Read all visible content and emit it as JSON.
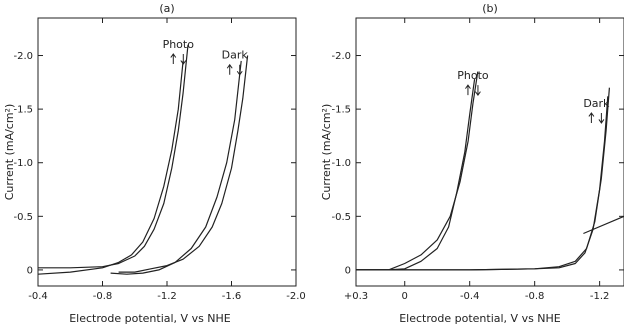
{
  "chart_data": [
    {
      "type": "line",
      "panel_label": "(a)",
      "xlabel": "Electrode potential, V vs NHE",
      "ylabel": "Current (mA/cm²)",
      "x_ticks": [
        "-0.4",
        "-0.8",
        "-1.2",
        "-1.6",
        "-2.0"
      ],
      "x_tick_values": [
        -0.4,
        -0.8,
        -1.2,
        -1.6,
        -2.0
      ],
      "y_ticks": [
        "0",
        "-0.5",
        "-1.0",
        "-1.5",
        "-2.0"
      ],
      "y_tick_values": [
        0,
        -0.5,
        -1.0,
        -1.5,
        -2.0
      ],
      "xlim": [
        -0.4,
        -2.0
      ],
      "ylim": [
        0.15,
        -2.35
      ],
      "grid": false,
      "annotations": [
        {
          "text": "Photo",
          "x": -1.27,
          "y": -2.07
        },
        {
          "text": "Dark",
          "x": -1.62,
          "y": -1.97
        }
      ],
      "series": [
        {
          "name": "Photo",
          "segments": [
            {
              "x": [
                -0.4,
                -0.6,
                -0.8,
                -0.9,
                -1.0,
                -1.06,
                -1.12,
                -1.18,
                -1.23,
                -1.27,
                -1.3,
                -1.33
              ],
              "y": [
                -0.02,
                -0.02,
                -0.03,
                -0.06,
                -0.13,
                -0.22,
                -0.38,
                -0.62,
                -0.95,
                -1.3,
                -1.65,
                -2.1
              ]
            },
            {
              "x": [
                -0.4,
                -0.6,
                -0.8,
                -0.9,
                -0.98,
                -1.05,
                -1.12,
                -1.18,
                -1.23,
                -1.27,
                -1.3
              ],
              "y": [
                0.04,
                0.02,
                -0.02,
                -0.07,
                -0.14,
                -0.26,
                -0.48,
                -0.78,
                -1.12,
                -1.5,
                -1.95
              ]
            }
          ]
        },
        {
          "name": "Dark",
          "segments": [
            {
              "x": [
                -0.9,
                -1.0,
                -1.1,
                -1.2,
                -1.3,
                -1.4,
                -1.48,
                -1.54,
                -1.6,
                -1.64,
                -1.67,
                -1.7
              ],
              "y": [
                0.02,
                0.02,
                -0.01,
                -0.04,
                -0.1,
                -0.22,
                -0.4,
                -0.62,
                -0.95,
                -1.3,
                -1.6,
                -2.0
              ]
            },
            {
              "x": [
                -0.85,
                -0.95,
                -1.05,
                -1.15,
                -1.25,
                -1.35,
                -1.44,
                -1.51,
                -1.57,
                -1.62,
                -1.66
              ],
              "y": [
                0.03,
                0.04,
                0.03,
                0.0,
                -0.07,
                -0.2,
                -0.4,
                -0.68,
                -1.0,
                -1.4,
                -1.95
              ]
            }
          ]
        }
      ]
    },
    {
      "type": "line",
      "panel_label": "(b)",
      "xlabel": "Electrode potential, V vs NHE",
      "ylabel": "Current (mA/cm²)",
      "x_ticks": [
        "+0.3",
        "0",
        "-0.4",
        "-0.8",
        "-1.2"
      ],
      "x_tick_values": [
        0.3,
        0,
        -0.4,
        -0.8,
        -1.2
      ],
      "y_ticks": [
        "0",
        "-0.5",
        "-1.0",
        "-1.5",
        "-2.0"
      ],
      "y_tick_values": [
        0,
        -0.5,
        -1.0,
        -1.5,
        -2.0
      ],
      "xlim": [
        0.3,
        -1.35
      ],
      "ylim": [
        0.15,
        -2.35
      ],
      "grid": false,
      "annotations": [
        {
          "text": "Photo",
          "x": -0.42,
          "y": -1.78
        },
        {
          "text": "Dark",
          "x": -1.18,
          "y": -1.52
        }
      ],
      "series": [
        {
          "name": "Photo",
          "segments": [
            {
              "x": [
                0.3,
                0.1,
                0.0,
                -0.1,
                -0.2,
                -0.28,
                -0.34,
                -0.39,
                -0.42,
                -0.45
              ],
              "y": [
                0.0,
                0.0,
                -0.06,
                -0.14,
                -0.28,
                -0.5,
                -0.82,
                -1.2,
                -1.55,
                -1.85
              ]
            },
            {
              "x": [
                0.3,
                0.1,
                0.0,
                -0.1,
                -0.2,
                -0.27,
                -0.32,
                -0.37,
                -0.4,
                -0.43
              ],
              "y": [
                0.0,
                0.0,
                -0.01,
                -0.08,
                -0.2,
                -0.4,
                -0.72,
                -1.1,
                -1.45,
                -1.78
              ]
            }
          ]
        },
        {
          "name": "Dark",
          "segments": [
            {
              "x": [
                0.3,
                -0.4,
                -0.8,
                -0.95,
                -1.05,
                -1.12,
                -1.17,
                -1.21,
                -1.24,
                -1.26
              ],
              "y": [
                0.0,
                0.0,
                -0.01,
                -0.03,
                -0.08,
                -0.2,
                -0.45,
                -0.85,
                -1.3,
                -1.7
              ]
            },
            {
              "x": [
                0.3,
                -0.4,
                -0.8,
                -0.95,
                -1.05,
                -1.11,
                -1.16,
                -1.2,
                -1.23,
                -1.25
              ],
              "y": [
                0.0,
                0.0,
                -0.01,
                -0.02,
                -0.06,
                -0.16,
                -0.38,
                -0.75,
                -1.2,
                -1.62
              ]
            }
          ]
        },
        {
          "name": "",
          "segments": [
            {
              "x": [
                -1.1,
                -1.35
              ],
              "y": [
                -0.34,
                -0.5
              ]
            }
          ]
        }
      ]
    }
  ]
}
